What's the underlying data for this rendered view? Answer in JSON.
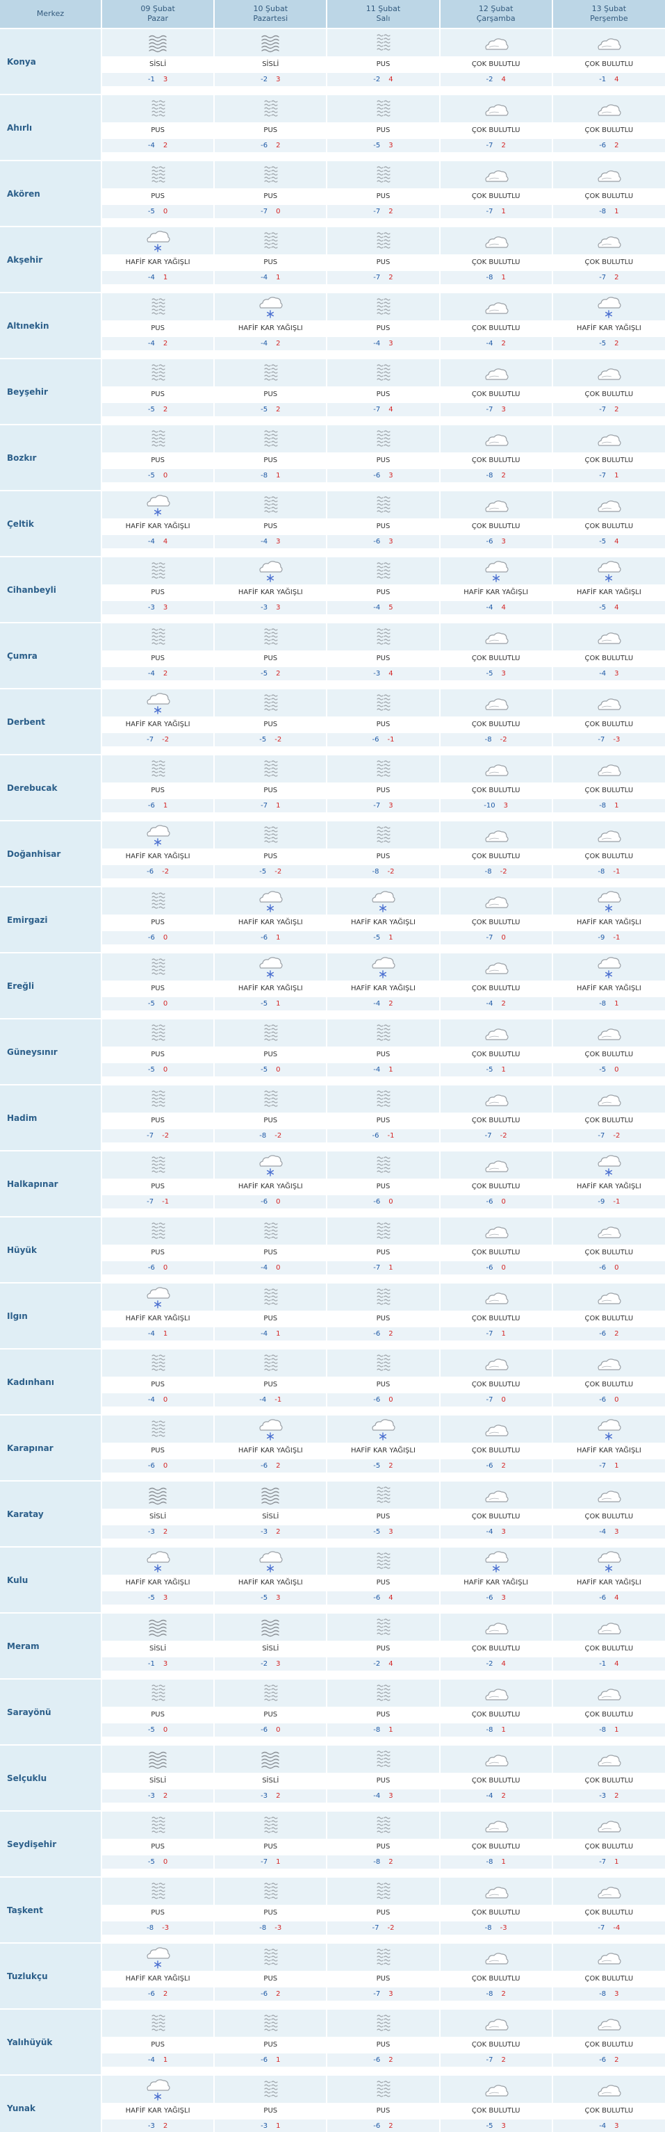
{
  "headers": {
    "merkez": "Merkez",
    "days": [
      {
        "date": "09 Şubat",
        "weekday": "Pazar"
      },
      {
        "date": "10 Şubat",
        "weekday": "Pazartesi"
      },
      {
        "date": "11 Şubat",
        "weekday": "Salı"
      },
      {
        "date": "12 Şubat",
        "weekday": "Çarşamba"
      },
      {
        "date": "13 Şubat",
        "weekday": "Perşembe"
      }
    ]
  },
  "conditions": {
    "sisli": "SİSLİ",
    "pus": "PUS",
    "cok_bulutlu": "ÇOK BULUTLU",
    "hafif_kar": "HAFİF KAR YAĞIŞLI"
  },
  "icons": {
    "sisli": "fog-icon",
    "pus": "haze-icon",
    "cok_bulutlu": "cloud-icon",
    "hafif_kar": "snow-cloud-icon"
  },
  "colors": {
    "min_temp": "#1f5aa6",
    "max_temp": "#d42525",
    "city_text": "#2c5f8a",
    "header_bg": "#bcd6e6"
  },
  "cities": [
    {
      "name": "Konya",
      "days": [
        [
          "sisli",
          "-1",
          "3"
        ],
        [
          "sisli",
          "-2",
          "3"
        ],
        [
          "pus",
          "-2",
          "4"
        ],
        [
          "cok_bulutlu",
          "-2",
          "4"
        ],
        [
          "cok_bulutlu",
          "-1",
          "4"
        ]
      ]
    },
    {
      "name": "Ahırlı",
      "days": [
        [
          "pus",
          "-4",
          "2"
        ],
        [
          "pus",
          "-6",
          "2"
        ],
        [
          "pus",
          "-5",
          "3"
        ],
        [
          "cok_bulutlu",
          "-7",
          "2"
        ],
        [
          "cok_bulutlu",
          "-6",
          "2"
        ]
      ]
    },
    {
      "name": "Akören",
      "days": [
        [
          "pus",
          "-5",
          "0"
        ],
        [
          "pus",
          "-7",
          "0"
        ],
        [
          "pus",
          "-7",
          "2"
        ],
        [
          "cok_bulutlu",
          "-7",
          "1"
        ],
        [
          "cok_bulutlu",
          "-8",
          "1"
        ]
      ]
    },
    {
      "name": "Akşehir",
      "days": [
        [
          "hafif_kar",
          "-4",
          "1"
        ],
        [
          "pus",
          "-4",
          "1"
        ],
        [
          "pus",
          "-7",
          "2"
        ],
        [
          "cok_bulutlu",
          "-8",
          "1"
        ],
        [
          "cok_bulutlu",
          "-7",
          "2"
        ]
      ]
    },
    {
      "name": "Altınekin",
      "days": [
        [
          "pus",
          "-4",
          "2"
        ],
        [
          "hafif_kar",
          "-4",
          "2"
        ],
        [
          "pus",
          "-4",
          "3"
        ],
        [
          "cok_bulutlu",
          "-4",
          "2"
        ],
        [
          "hafif_kar",
          "-5",
          "2"
        ]
      ]
    },
    {
      "name": "Beyşehir",
      "days": [
        [
          "pus",
          "-5",
          "2"
        ],
        [
          "pus",
          "-5",
          "2"
        ],
        [
          "pus",
          "-7",
          "4"
        ],
        [
          "cok_bulutlu",
          "-7",
          "3"
        ],
        [
          "cok_bulutlu",
          "-7",
          "2"
        ]
      ]
    },
    {
      "name": "Bozkır",
      "days": [
        [
          "pus",
          "-5",
          "0"
        ],
        [
          "pus",
          "-8",
          "1"
        ],
        [
          "pus",
          "-6",
          "3"
        ],
        [
          "cok_bulutlu",
          "-8",
          "2"
        ],
        [
          "cok_bulutlu",
          "-7",
          "1"
        ]
      ]
    },
    {
      "name": "Çeltik",
      "days": [
        [
          "hafif_kar",
          "-4",
          "4"
        ],
        [
          "pus",
          "-4",
          "3"
        ],
        [
          "pus",
          "-6",
          "3"
        ],
        [
          "cok_bulutlu",
          "-6",
          "3"
        ],
        [
          "cok_bulutlu",
          "-5",
          "4"
        ]
      ]
    },
    {
      "name": "Cihanbeyli",
      "days": [
        [
          "pus",
          "-3",
          "3"
        ],
        [
          "hafif_kar",
          "-3",
          "3"
        ],
        [
          "pus",
          "-4",
          "5"
        ],
        [
          "hafif_kar",
          "-4",
          "4"
        ],
        [
          "hafif_kar",
          "-5",
          "4"
        ]
      ]
    },
    {
      "name": "Çumra",
      "days": [
        [
          "pus",
          "-4",
          "2"
        ],
        [
          "pus",
          "-5",
          "2"
        ],
        [
          "pus",
          "-3",
          "4"
        ],
        [
          "cok_bulutlu",
          "-5",
          "3"
        ],
        [
          "cok_bulutlu",
          "-4",
          "3"
        ]
      ]
    },
    {
      "name": "Derbent",
      "days": [
        [
          "hafif_kar",
          "-7",
          "-2"
        ],
        [
          "pus",
          "-5",
          "-2"
        ],
        [
          "pus",
          "-6",
          "-1"
        ],
        [
          "cok_bulutlu",
          "-8",
          "-2"
        ],
        [
          "cok_bulutlu",
          "-7",
          "-3"
        ]
      ]
    },
    {
      "name": "Derebucak",
      "days": [
        [
          "pus",
          "-6",
          "1"
        ],
        [
          "pus",
          "-7",
          "1"
        ],
        [
          "pus",
          "-7",
          "3"
        ],
        [
          "cok_bulutlu",
          "-10",
          "3"
        ],
        [
          "cok_bulutlu",
          "-8",
          "1"
        ]
      ]
    },
    {
      "name": "Doğanhisar",
      "days": [
        [
          "hafif_kar",
          "-6",
          "-2"
        ],
        [
          "pus",
          "-5",
          "-2"
        ],
        [
          "pus",
          "-8",
          "-2"
        ],
        [
          "cok_bulutlu",
          "-8",
          "-2"
        ],
        [
          "cok_bulutlu",
          "-8",
          "-1"
        ]
      ]
    },
    {
      "name": "Emirgazi",
      "days": [
        [
          "pus",
          "-6",
          "0"
        ],
        [
          "hafif_kar",
          "-6",
          "1"
        ],
        [
          "hafif_kar",
          "-5",
          "1"
        ],
        [
          "cok_bulutlu",
          "-7",
          "0"
        ],
        [
          "hafif_kar",
          "-9",
          "-1"
        ]
      ]
    },
    {
      "name": "Ereğli",
      "days": [
        [
          "pus",
          "-5",
          "0"
        ],
        [
          "hafif_kar",
          "-5",
          "1"
        ],
        [
          "hafif_kar",
          "-4",
          "2"
        ],
        [
          "cok_bulutlu",
          "-4",
          "2"
        ],
        [
          "hafif_kar",
          "-8",
          "1"
        ]
      ]
    },
    {
      "name": "Güneysınır",
      "days": [
        [
          "pus",
          "-5",
          "0"
        ],
        [
          "pus",
          "-5",
          "0"
        ],
        [
          "pus",
          "-4",
          "1"
        ],
        [
          "cok_bulutlu",
          "-5",
          "1"
        ],
        [
          "cok_bulutlu",
          "-5",
          "0"
        ]
      ]
    },
    {
      "name": "Hadim",
      "days": [
        [
          "pus",
          "-7",
          "-2"
        ],
        [
          "pus",
          "-8",
          "-2"
        ],
        [
          "pus",
          "-6",
          "-1"
        ],
        [
          "cok_bulutlu",
          "-7",
          "-2"
        ],
        [
          "cok_bulutlu",
          "-7",
          "-2"
        ]
      ]
    },
    {
      "name": "Halkapınar",
      "days": [
        [
          "pus",
          "-7",
          "-1"
        ],
        [
          "hafif_kar",
          "-6",
          "0"
        ],
        [
          "pus",
          "-6",
          "0"
        ],
        [
          "cok_bulutlu",
          "-6",
          "0"
        ],
        [
          "hafif_kar",
          "-9",
          "-1"
        ]
      ]
    },
    {
      "name": "Hüyük",
      "days": [
        [
          "pus",
          "-6",
          "0"
        ],
        [
          "pus",
          "-4",
          "0"
        ],
        [
          "pus",
          "-7",
          "1"
        ],
        [
          "cok_bulutlu",
          "-6",
          "0"
        ],
        [
          "cok_bulutlu",
          "-6",
          "0"
        ]
      ]
    },
    {
      "name": "Ilgın",
      "days": [
        [
          "hafif_kar",
          "-4",
          "1"
        ],
        [
          "pus",
          "-4",
          "1"
        ],
        [
          "pus",
          "-6",
          "2"
        ],
        [
          "cok_bulutlu",
          "-7",
          "1"
        ],
        [
          "cok_bulutlu",
          "-6",
          "2"
        ]
      ]
    },
    {
      "name": "Kadınhanı",
      "days": [
        [
          "pus",
          "-4",
          "0"
        ],
        [
          "pus",
          "-4",
          "-1"
        ],
        [
          "pus",
          "-6",
          "0"
        ],
        [
          "cok_bulutlu",
          "-7",
          "0"
        ],
        [
          "cok_bulutlu",
          "-6",
          "0"
        ]
      ]
    },
    {
      "name": "Karapınar",
      "days": [
        [
          "pus",
          "-6",
          "0"
        ],
        [
          "hafif_kar",
          "-6",
          "2"
        ],
        [
          "hafif_kar",
          "-5",
          "2"
        ],
        [
          "cok_bulutlu",
          "-6",
          "2"
        ],
        [
          "hafif_kar",
          "-7",
          "1"
        ]
      ]
    },
    {
      "name": "Karatay",
      "days": [
        [
          "sisli",
          "-3",
          "2"
        ],
        [
          "sisli",
          "-3",
          "2"
        ],
        [
          "pus",
          "-5",
          "3"
        ],
        [
          "cok_bulutlu",
          "-4",
          "3"
        ],
        [
          "cok_bulutlu",
          "-4",
          "3"
        ]
      ]
    },
    {
      "name": "Kulu",
      "days": [
        [
          "hafif_kar",
          "-5",
          "3"
        ],
        [
          "hafif_kar",
          "-5",
          "3"
        ],
        [
          "pus",
          "-6",
          "4"
        ],
        [
          "hafif_kar",
          "-6",
          "3"
        ],
        [
          "hafif_kar",
          "-6",
          "4"
        ]
      ]
    },
    {
      "name": "Meram",
      "days": [
        [
          "sisli",
          "-1",
          "3"
        ],
        [
          "sisli",
          "-2",
          "3"
        ],
        [
          "pus",
          "-2",
          "4"
        ],
        [
          "cok_bulutlu",
          "-2",
          "4"
        ],
        [
          "cok_bulutlu",
          "-1",
          "4"
        ]
      ]
    },
    {
      "name": "Sarayönü",
      "days": [
        [
          "pus",
          "-5",
          "0"
        ],
        [
          "pus",
          "-6",
          "0"
        ],
        [
          "pus",
          "-8",
          "1"
        ],
        [
          "cok_bulutlu",
          "-8",
          "1"
        ],
        [
          "cok_bulutlu",
          "-8",
          "1"
        ]
      ]
    },
    {
      "name": "Selçuklu",
      "days": [
        [
          "sisli",
          "-3",
          "2"
        ],
        [
          "sisli",
          "-3",
          "2"
        ],
        [
          "pus",
          "-4",
          "3"
        ],
        [
          "cok_bulutlu",
          "-4",
          "2"
        ],
        [
          "cok_bulutlu",
          "-3",
          "2"
        ]
      ]
    },
    {
      "name": "Seydişehir",
      "days": [
        [
          "pus",
          "-5",
          "0"
        ],
        [
          "pus",
          "-7",
          "1"
        ],
        [
          "pus",
          "-8",
          "2"
        ],
        [
          "cok_bulutlu",
          "-8",
          "1"
        ],
        [
          "cok_bulutlu",
          "-7",
          "1"
        ]
      ]
    },
    {
      "name": "Taşkent",
      "days": [
        [
          "pus",
          "-8",
          "-3"
        ],
        [
          "pus",
          "-8",
          "-3"
        ],
        [
          "pus",
          "-7",
          "-2"
        ],
        [
          "cok_bulutlu",
          "-8",
          "-3"
        ],
        [
          "cok_bulutlu",
          "-7",
          "-4"
        ]
      ]
    },
    {
      "name": "Tuzlukçu",
      "days": [
        [
          "hafif_kar",
          "-6",
          "2"
        ],
        [
          "pus",
          "-6",
          "2"
        ],
        [
          "pus",
          "-7",
          "3"
        ],
        [
          "cok_bulutlu",
          "-8",
          "2"
        ],
        [
          "cok_bulutlu",
          "-8",
          "3"
        ]
      ]
    },
    {
      "name": "Yalıhüyük",
      "days": [
        [
          "pus",
          "-4",
          "1"
        ],
        [
          "pus",
          "-6",
          "1"
        ],
        [
          "pus",
          "-6",
          "2"
        ],
        [
          "cok_bulutlu",
          "-7",
          "2"
        ],
        [
          "cok_bulutlu",
          "-6",
          "2"
        ]
      ]
    },
    {
      "name": "Yunak",
      "days": [
        [
          "hafif_kar",
          "-3",
          "2"
        ],
        [
          "pus",
          "-3",
          "1"
        ],
        [
          "pus",
          "-6",
          "2"
        ],
        [
          "cok_bulutlu",
          "-5",
          "3"
        ],
        [
          "cok_bulutlu",
          "-4",
          "3"
        ]
      ]
    }
  ]
}
